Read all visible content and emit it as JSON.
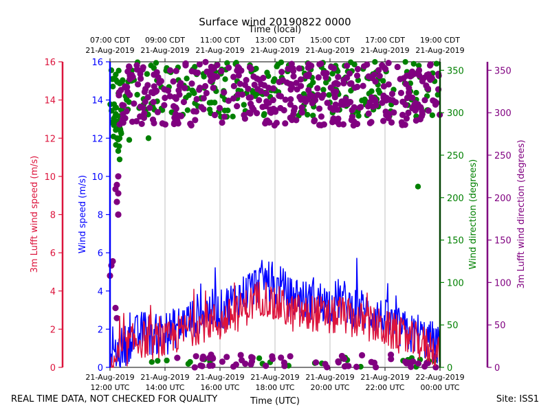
{
  "chart_data": {
    "type": "scatter",
    "title": "Surface wind 20190822 0000",
    "top_xlabel": "Time (local)",
    "xlabel": "Time (UTC)",
    "xlim": [
      12,
      24
    ],
    "bottom_ticks": [
      {
        "x": 12,
        "line1": "21-Aug-2019",
        "line2": "12:00 UTC"
      },
      {
        "x": 14,
        "line1": "21-Aug-2019",
        "line2": "14:00 UTC"
      },
      {
        "x": 16,
        "line1": "21-Aug-2019",
        "line2": "16:00 UTC"
      },
      {
        "x": 18,
        "line1": "21-Aug-2019",
        "line2": "18:00 UTC"
      },
      {
        "x": 20,
        "line1": "21-Aug-2019",
        "line2": "20:00 UTC"
      },
      {
        "x": 22,
        "line1": "21-Aug-2019",
        "line2": "22:00 UTC"
      },
      {
        "x": 24,
        "line1": "22-Aug-2019",
        "line2": "00:00 UTC"
      }
    ],
    "top_ticks": [
      {
        "x": 12,
        "line1": "07:00 CDT",
        "line2": "21-Aug-2019"
      },
      {
        "x": 14,
        "line1": "09:00 CDT",
        "line2": "21-Aug-2019"
      },
      {
        "x": 16,
        "line1": "11:00 CDT",
        "line2": "21-Aug-2019"
      },
      {
        "x": 18,
        "line1": "13:00 CDT",
        "line2": "21-Aug-2019"
      },
      {
        "x": 20,
        "line1": "15:00 CDT",
        "line2": "21-Aug-2019"
      },
      {
        "x": 22,
        "line1": "17:00 CDT",
        "line2": "21-Aug-2019"
      },
      {
        "x": 24,
        "line1": "19:00 CDT",
        "line2": "21-Aug-2019"
      }
    ],
    "axes": {
      "speed_left_outer": {
        "label": "3m Lufft wind speed (m/s)",
        "range": [
          0,
          16
        ],
        "ticks": [
          "0",
          "2",
          "4",
          "6",
          "8",
          "10",
          "12",
          "14",
          "16"
        ],
        "color": "#dc143c"
      },
      "speed_left_inner": {
        "label": "Wind speed (m/s)",
        "range": [
          0,
          16
        ],
        "ticks": [
          "0",
          "2",
          "4",
          "6",
          "8",
          "10",
          "12",
          "14",
          "16"
        ],
        "color": "#0000ff"
      },
      "dir_right_inner": {
        "label": "Wind direction (degrees)",
        "range": [
          0,
          360
        ],
        "ticks": [
          "0",
          "50",
          "100",
          "150",
          "200",
          "250",
          "300",
          "350"
        ],
        "color": "#008000"
      },
      "dir_right_outer": {
        "label": "3m Lufft wind direction (degrees)",
        "range": [
          0,
          360
        ],
        "ticks": [
          "0",
          "50",
          "100",
          "150",
          "200",
          "250",
          "300",
          "350"
        ],
        "color": "#800080"
      }
    },
    "series": [
      {
        "name": "Wind speed (m/s)",
        "kind": "line",
        "color": "#0000ff",
        "points": [
          [
            12.0,
            0.3
          ],
          [
            12.2,
            0.7
          ],
          [
            12.4,
            1.0
          ],
          [
            12.6,
            1.2
          ],
          [
            12.8,
            1.6
          ],
          [
            13.0,
            1.7
          ],
          [
            13.2,
            1.9
          ],
          [
            13.4,
            1.8
          ],
          [
            13.6,
            1.6
          ],
          [
            13.8,
            1.9
          ],
          [
            14.0,
            1.6
          ],
          [
            14.2,
            1.9
          ],
          [
            14.4,
            2.1
          ],
          [
            14.6,
            2.2
          ],
          [
            14.8,
            2.4
          ],
          [
            15.0,
            2.6
          ],
          [
            15.2,
            2.8
          ],
          [
            15.4,
            2.9
          ],
          [
            15.6,
            3.0
          ],
          [
            15.8,
            3.0
          ],
          [
            16.0,
            2.9
          ],
          [
            16.2,
            3.2
          ],
          [
            16.4,
            3.4
          ],
          [
            16.6,
            3.6
          ],
          [
            16.8,
            3.8
          ],
          [
            17.0,
            4.0
          ],
          [
            17.2,
            4.2
          ],
          [
            17.4,
            4.4
          ],
          [
            17.6,
            4.6
          ],
          [
            17.8,
            4.4
          ],
          [
            18.0,
            4.0
          ],
          [
            18.2,
            4.3
          ],
          [
            18.4,
            3.9
          ],
          [
            18.6,
            3.6
          ],
          [
            18.8,
            3.8
          ],
          [
            19.0,
            3.6
          ],
          [
            19.2,
            3.4
          ],
          [
            19.4,
            3.7
          ],
          [
            19.6,
            3.5
          ],
          [
            19.8,
            3.4
          ],
          [
            20.0,
            3.3
          ],
          [
            20.2,
            3.5
          ],
          [
            20.4,
            3.6
          ],
          [
            20.6,
            3.4
          ],
          [
            20.8,
            3.1
          ],
          [
            21.0,
            3.2
          ],
          [
            21.2,
            3.0
          ],
          [
            21.4,
            2.9
          ],
          [
            21.6,
            2.8
          ],
          [
            21.8,
            2.6
          ],
          [
            22.0,
            2.5
          ],
          [
            22.2,
            2.3
          ],
          [
            22.4,
            2.1
          ],
          [
            22.6,
            2.0
          ],
          [
            22.8,
            1.8
          ],
          [
            23.0,
            1.7
          ],
          [
            23.2,
            1.8
          ],
          [
            23.4,
            1.5
          ],
          [
            23.6,
            1.4
          ],
          [
            23.8,
            1.3
          ],
          [
            24.0,
            1.0
          ]
        ],
        "amplitude": 1.1
      },
      {
        "name": "3m Lufft wind speed (m/s)",
        "kind": "line",
        "color": "#dc143c",
        "points": [
          [
            12.0,
            0.1
          ],
          [
            12.2,
            0.5
          ],
          [
            12.4,
            0.8
          ],
          [
            12.6,
            1.0
          ],
          [
            12.8,
            1.3
          ],
          [
            13.0,
            1.4
          ],
          [
            13.2,
            1.5
          ],
          [
            13.4,
            1.4
          ],
          [
            13.6,
            1.3
          ],
          [
            13.8,
            1.5
          ],
          [
            14.0,
            1.3
          ],
          [
            14.2,
            1.5
          ],
          [
            14.4,
            1.7
          ],
          [
            14.6,
            1.8
          ],
          [
            14.8,
            2.0
          ],
          [
            15.0,
            2.1
          ],
          [
            15.2,
            2.2
          ],
          [
            15.4,
            2.3
          ],
          [
            15.6,
            2.4
          ],
          [
            15.8,
            2.4
          ],
          [
            16.0,
            2.3
          ],
          [
            16.2,
            2.5
          ],
          [
            16.4,
            2.7
          ],
          [
            16.6,
            2.8
          ],
          [
            16.8,
            3.0
          ],
          [
            17.0,
            3.2
          ],
          [
            17.2,
            3.4
          ],
          [
            17.4,
            3.6
          ],
          [
            17.6,
            3.7
          ],
          [
            17.8,
            3.5
          ],
          [
            18.0,
            3.1
          ],
          [
            18.2,
            3.3
          ],
          [
            18.4,
            3.0
          ],
          [
            18.6,
            2.8
          ],
          [
            18.8,
            2.9
          ],
          [
            19.0,
            2.8
          ],
          [
            19.2,
            2.7
          ],
          [
            19.4,
            2.9
          ],
          [
            19.6,
            2.8
          ],
          [
            19.8,
            2.7
          ],
          [
            20.0,
            2.6
          ],
          [
            20.2,
            2.7
          ],
          [
            20.4,
            2.8
          ],
          [
            20.6,
            2.7
          ],
          [
            20.8,
            2.5
          ],
          [
            21.0,
            2.5
          ],
          [
            21.2,
            2.4
          ],
          [
            21.4,
            2.3
          ],
          [
            21.6,
            2.2
          ],
          [
            21.8,
            2.1
          ],
          [
            22.0,
            2.0
          ],
          [
            22.2,
            1.9
          ],
          [
            22.4,
            1.8
          ],
          [
            22.6,
            1.6
          ],
          [
            22.8,
            1.5
          ],
          [
            23.0,
            1.4
          ],
          [
            23.2,
            1.4
          ],
          [
            23.4,
            1.2
          ],
          [
            23.6,
            1.1
          ],
          [
            23.8,
            1.0
          ],
          [
            24.0,
            0.8
          ]
        ],
        "amplitude": 1.0
      },
      {
        "name": "Wind direction (degrees)",
        "kind": "scatter",
        "color": "#008000",
        "clusters": [
          {
            "x": [
              12.0,
              12.5
            ],
            "deg": [
              260,
              350
            ],
            "n": 40
          },
          {
            "x": [
              12.5,
              24.0
            ],
            "deg": [
              295,
              360
            ],
            "n": 260
          },
          {
            "x": [
              12.5,
              24.0
            ],
            "deg": [
              0,
              12
            ],
            "n": 25
          }
        ],
        "outliers": [
          [
            12.05,
            350
          ],
          [
            12.1,
            340
          ],
          [
            12.15,
            310
          ],
          [
            12.2,
            290
          ],
          [
            12.25,
            270
          ],
          [
            12.3,
            255
          ],
          [
            12.35,
            245
          ],
          [
            12.7,
            268
          ],
          [
            13.4,
            270
          ],
          [
            23.2,
            213
          ],
          [
            12.3,
            255
          ]
        ]
      },
      {
        "name": "3m Lufft wind direction (degrees)",
        "kind": "scatter",
        "color": "#800080",
        "clusters": [
          {
            "x": [
              12.3,
              24.0
            ],
            "deg": [
              285,
              360
            ],
            "n": 420
          },
          {
            "x": [
              14.0,
              24.0
            ],
            "deg": [
              0,
              15
            ],
            "n": 60
          }
        ],
        "outliers": [
          [
            12.05,
            120
          ],
          [
            12.1,
            125
          ],
          [
            12.0,
            108
          ],
          [
            12.2,
            70
          ],
          [
            12.25,
            58
          ],
          [
            12.3,
            180
          ],
          [
            12.3,
            180
          ],
          [
            12.25,
            195
          ],
          [
            12.3,
            205
          ],
          [
            12.2,
            210
          ],
          [
            12.25,
            215
          ],
          [
            12.3,
            225
          ]
        ]
      }
    ]
  },
  "footer": {
    "quality_note": "REAL TIME DATA, NOT CHECKED FOR QUALITY",
    "site": "Site: ISS1"
  }
}
